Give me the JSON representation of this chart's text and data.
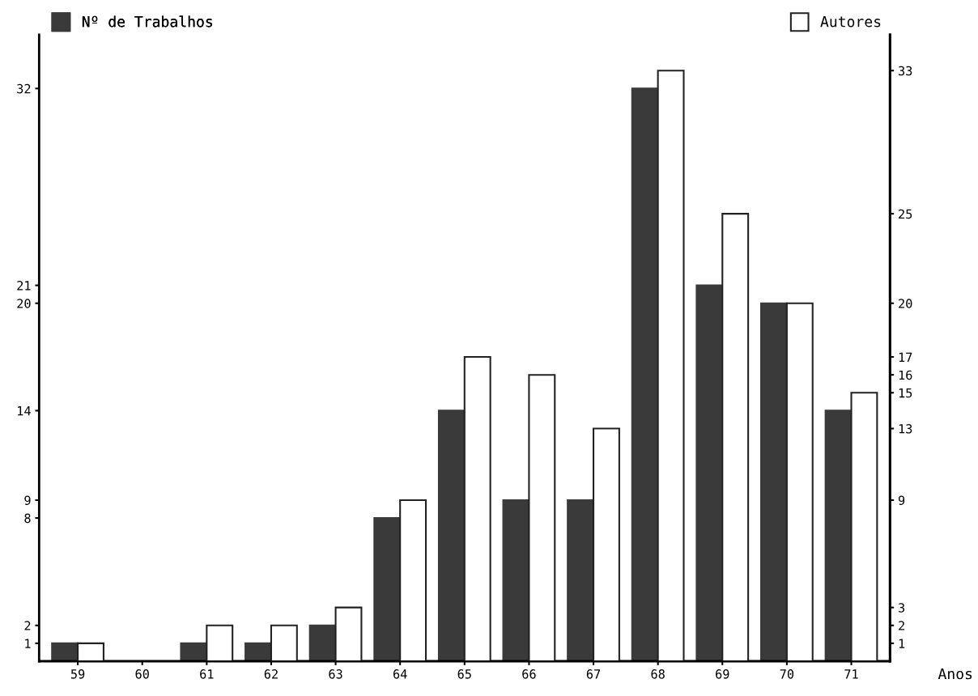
{
  "chart_data": {
    "type": "bar",
    "categories": [
      "59",
      "60",
      "61",
      "62",
      "63",
      "64",
      "65",
      "66",
      "67",
      "68",
      "69",
      "70",
      "71"
    ],
    "xlabel": "Anos",
    "series": [
      {
        "name": "Nº de Trabalhos",
        "color": "#3a3a3a",
        "values": [
          1,
          null,
          1,
          1,
          2,
          8,
          14,
          9,
          9,
          32,
          21,
          20,
          14
        ]
      },
      {
        "name": "Autores",
        "color": "#ffffff",
        "axis": "y2",
        "values": [
          1,
          null,
          2,
          2,
          3,
          9,
          17,
          16,
          13,
          33,
          25,
          20,
          15
        ]
      }
    ],
    "ylim": [
      0,
      35
    ],
    "yticks": [
      1,
      2,
      8,
      9,
      14,
      20,
      21,
      32
    ],
    "y2lim": [
      0,
      35
    ],
    "y2ticks": [
      1,
      2,
      3,
      9,
      13,
      15,
      16,
      17,
      20,
      25,
      33
    ],
    "legend": "top",
    "grid": false
  }
}
